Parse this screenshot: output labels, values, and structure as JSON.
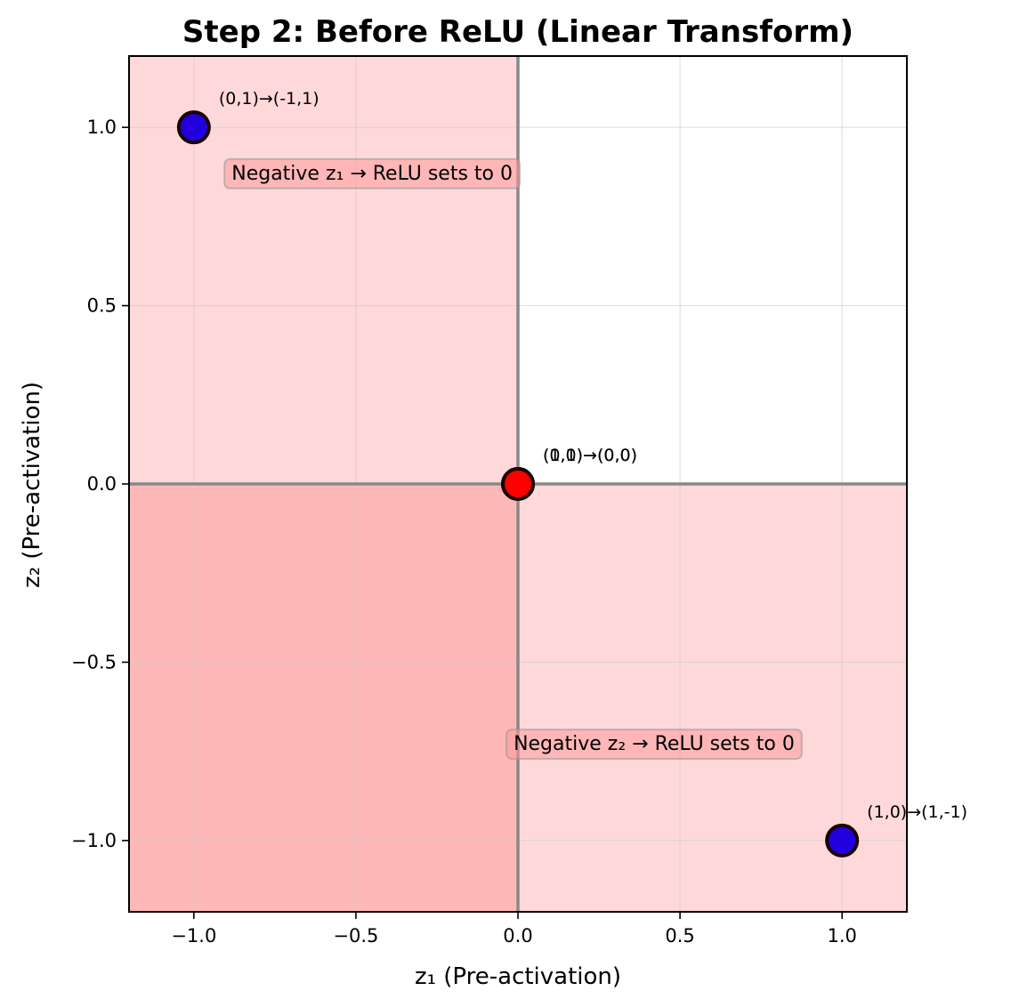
{
  "chart_data": {
    "type": "scatter",
    "title": "Step 2: Before ReLU (Linear Transform)",
    "xlabel": "z₁ (Pre-activation)",
    "ylabel": "z₂ (Pre-activation)",
    "xlim": [
      -1.2,
      1.2
    ],
    "ylim": [
      -1.2,
      1.2
    ],
    "xticks": [
      -1.0,
      -0.5,
      0.0,
      0.5,
      1.0
    ],
    "yticks": [
      -1.0,
      -0.5,
      0.0,
      0.5,
      1.0
    ],
    "xtick_labels": [
      "−1.0",
      "−0.5",
      "0.0",
      "0.5",
      "1.0"
    ],
    "ytick_labels": [
      "−1.0",
      "−0.5",
      "0.0",
      "0.5",
      "1.0"
    ],
    "grid": true,
    "points": [
      {
        "x": -1,
        "y": 1,
        "label": "(0,1)→(-1,1)",
        "color": "#2200dd"
      },
      {
        "x": 1,
        "y": -1,
        "label": "(1,0)→(1,-1)",
        "color": "#2200dd"
      },
      {
        "x": 0,
        "y": 0,
        "label": "(0,0)→(0,0)",
        "color": "#ff0000"
      },
      {
        "x": 0,
        "y": 0,
        "label": "(1,1)→(0,0)",
        "color": "#ff0000"
      }
    ],
    "shaded_regions": [
      {
        "name": "negative-z1",
        "x": [
          -1.2,
          0
        ],
        "y": [
          -1.2,
          1.2
        ],
        "color": "#ff0000",
        "alpha": 0.15
      },
      {
        "name": "negative-z2",
        "x": [
          -1.2,
          1.2
        ],
        "y": [
          -1.2,
          0
        ],
        "color": "#ff0000",
        "alpha": 0.15
      }
    ],
    "annotations": [
      {
        "text": "Negative z₁ → ReLU sets to 0",
        "x": -0.45,
        "y": 0.87
      },
      {
        "text": "Negative z₂ → ReLU sets to 0",
        "x": 0.42,
        "y": -0.73
      }
    ],
    "colors": {
      "region": "#ff0000",
      "axis_line": "#888888",
      "grid": "#cccccc",
      "marker_edge": "#1a0000",
      "note_box": "#ff9999"
    }
  }
}
